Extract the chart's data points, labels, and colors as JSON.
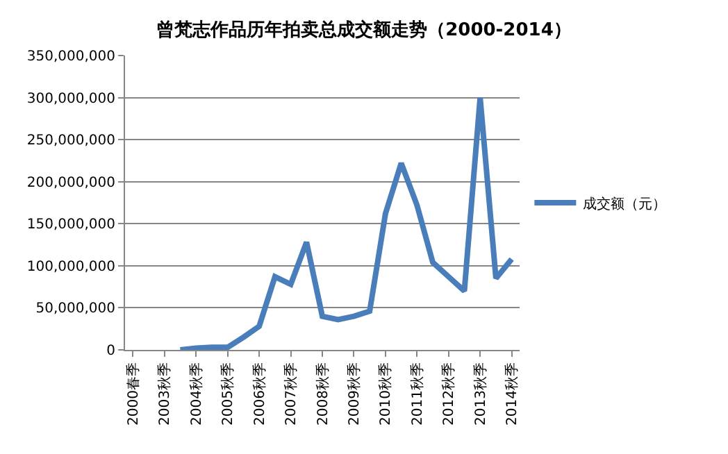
{
  "chart_data": {
    "type": "line",
    "title": "曾梵志作品历年拍卖总成交额走势（2000-2014）",
    "categories": [
      "2000春季",
      null,
      "2003秋季",
      null,
      "2004秋季",
      null,
      "2005秋季",
      null,
      "2006秋季",
      null,
      "2007秋季",
      null,
      "2008秋季",
      null,
      "2009秋季",
      null,
      "2010秋季",
      null,
      "2011秋季",
      null,
      "2012秋季",
      null,
      "2013秋季",
      null,
      "2014秋季"
    ],
    "series": [
      {
        "name": "成交额（元）",
        "color": "#4a7ebb",
        "values": [
          null,
          null,
          null,
          0,
          2000000,
          3000000,
          3000000,
          15000000,
          28000000,
          87000000,
          78000000,
          128000000,
          40000000,
          36000000,
          40000000,
          46000000,
          162000000,
          222000000,
          172000000,
          104000000,
          87000000,
          70000000,
          300000000,
          85000000,
          108000000
        ]
      }
    ],
    "ylim": [
      0,
      350000000
    ],
    "yticks": [
      {
        "value": 0,
        "label": "0"
      },
      {
        "value": 50000000,
        "label": "50,000,000"
      },
      {
        "value": 100000000,
        "label": "100,000,000"
      },
      {
        "value": 150000000,
        "label": "150,000,000"
      },
      {
        "value": 200000000,
        "label": "200,000,000"
      },
      {
        "value": 250000000,
        "label": "250,000,000"
      },
      {
        "value": 300000000,
        "label": "300,000,000"
      },
      {
        "value": 350000000,
        "label": "350,000,000"
      }
    ],
    "grid": "y",
    "legend": "right",
    "marker": "none",
    "line_style": "solid"
  }
}
